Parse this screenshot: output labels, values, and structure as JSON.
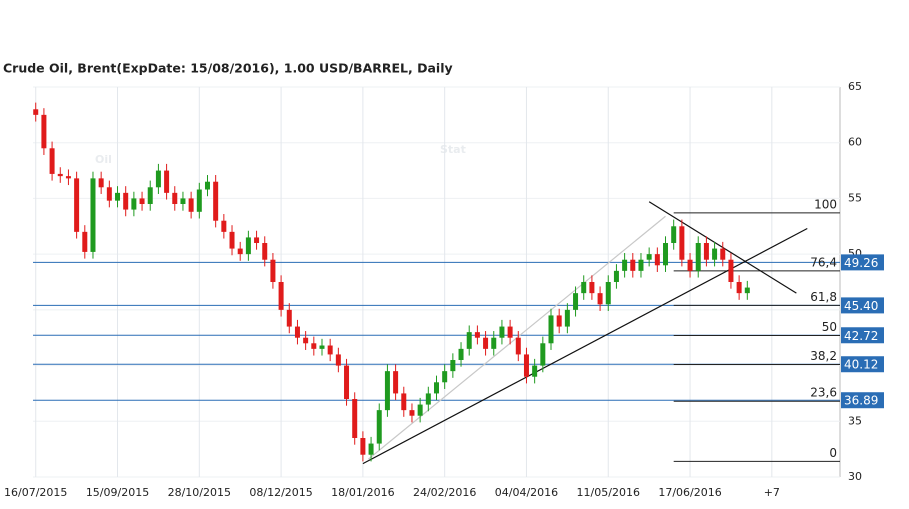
{
  "chart_data": {
    "type": "candlestick",
    "title": "Crude Oil, Brent(ExpDate: 15/08/2016), 1.00 USD/BARREL, Daily",
    "watermark": [
      "Oil",
      "Stat"
    ],
    "xlim": [
      -1,
      295
    ],
    "xticks": [
      {
        "value": 0,
        "label": "16/07/2015"
      },
      {
        "value": 30,
        "label": "15/09/2015"
      },
      {
        "value": 60,
        "label": "28/10/2015"
      },
      {
        "value": 90,
        "label": "08/12/2015"
      },
      {
        "value": 120,
        "label": "18/01/2016"
      },
      {
        "value": 150,
        "label": "24/02/2016"
      },
      {
        "value": 180,
        "label": "04/04/2016"
      },
      {
        "value": 210,
        "label": "11/05/2016"
      },
      {
        "value": 240,
        "label": "17/06/2016"
      },
      {
        "value": 270,
        "label": "+7"
      }
    ],
    "ylim": [
      30,
      65
    ],
    "yticks": [
      30,
      35,
      40,
      45,
      50,
      55,
      60,
      65
    ],
    "grid": true,
    "up_color": "#1f9a1f",
    "down_color": "#e01b1b",
    "x": [
      0,
      3,
      6,
      9,
      12,
      15,
      18,
      21,
      24,
      27,
      30,
      33,
      36,
      39,
      42,
      45,
      48,
      51,
      54,
      57,
      60,
      63,
      66,
      69,
      72,
      75,
      78,
      81,
      84,
      87,
      90,
      93,
      96,
      99,
      102,
      105,
      108,
      111,
      114,
      117,
      120,
      123,
      126,
      129,
      132,
      135,
      138,
      141,
      144,
      147,
      150,
      153,
      156,
      159,
      162,
      165,
      168,
      171,
      174,
      177,
      180,
      183,
      186,
      189,
      192,
      195,
      198,
      201,
      204,
      207,
      210,
      213,
      216,
      219,
      222,
      225,
      228,
      231,
      234,
      237,
      240,
      243,
      246,
      249,
      252,
      255,
      258,
      261
    ],
    "open": [
      63,
      62.5,
      59.5,
      57.2,
      57,
      56.8,
      52,
      50.2,
      56.8,
      56,
      54.8,
      55.5,
      54,
      55,
      54.5,
      56,
      57.5,
      55.5,
      54.5,
      55,
      53.8,
      55.8,
      56.5,
      53,
      52,
      50.5,
      50,
      51.5,
      51,
      49.5,
      47.5,
      45,
      43.5,
      42.5,
      42,
      41.5,
      41.8,
      41,
      40,
      37,
      33.5,
      32,
      33,
      36,
      39.5,
      37.5,
      36,
      35.5,
      36.5,
      37.5,
      38.5,
      39.5,
      40.5,
      41.5,
      43,
      42.5,
      41.5,
      42.5,
      43.5,
      42.5,
      41,
      39,
      40,
      42,
      44.5,
      43.5,
      45,
      46.5,
      47.5,
      46.5,
      45.5,
      47.5,
      48.5,
      49.5,
      48.5,
      49.5,
      50,
      49,
      51,
      52.5,
      49.5,
      48.5,
      51,
      49.5,
      50.5,
      49.5,
      47.5,
      46.5
    ],
    "high": [
      63.6,
      63.1,
      60.1,
      57.8,
      57.6,
      57.4,
      52.6,
      57.4,
      57.4,
      56.6,
      56.1,
      56.1,
      55.6,
      55.6,
      56.6,
      58.1,
      58.1,
      56.1,
      55.6,
      55.6,
      56.4,
      57.1,
      57.1,
      53.6,
      52.6,
      51.1,
      52.1,
      52.1,
      51.6,
      50.1,
      48.1,
      45.6,
      44.1,
      43.1,
      42.6,
      42.4,
      42.4,
      41.6,
      40.6,
      37.6,
      34.1,
      33.6,
      36.6,
      40.1,
      40.1,
      38.1,
      36.6,
      37.1,
      38.1,
      39.1,
      40.1,
      41.1,
      42.1,
      43.6,
      43.6,
      43.1,
      43.1,
      44.1,
      44.1,
      43.1,
      41.6,
      40.6,
      42.6,
      45.1,
      45.1,
      45.6,
      47.1,
      48.1,
      48.1,
      47.1,
      48.1,
      49.1,
      50.1,
      50.1,
      50.1,
      50.6,
      50.6,
      51.6,
      53.1,
      53.1,
      50.1,
      51.6,
      51.6,
      51.1,
      51.1,
      50.1,
      48.1,
      47.6
    ],
    "low": [
      61.9,
      58.9,
      56.6,
      56.4,
      56.2,
      51.4,
      49.6,
      49.6,
      55.4,
      54.2,
      54.2,
      53.4,
      53.4,
      53.9,
      53.9,
      55.4,
      54.9,
      53.9,
      53.9,
      53.2,
      53.2,
      55.2,
      52.4,
      51.4,
      49.9,
      49.4,
      49.4,
      50.4,
      48.9,
      46.9,
      44.4,
      42.9,
      41.9,
      41.4,
      40.9,
      40.9,
      40.4,
      39.4,
      36.4,
      32.9,
      31.4,
      31.4,
      32.4,
      35.4,
      36.9,
      35.4,
      34.9,
      34.9,
      35.9,
      36.9,
      37.9,
      38.9,
      39.9,
      40.9,
      41.9,
      40.9,
      40.9,
      41.9,
      41.9,
      40.4,
      38.4,
      38.4,
      39.4,
      41.4,
      42.9,
      42.9,
      44.4,
      45.9,
      45.9,
      44.9,
      44.9,
      46.9,
      47.9,
      47.9,
      47.9,
      48.9,
      48.4,
      48.4,
      50.4,
      48.9,
      47.9,
      47.9,
      48.9,
      48.9,
      48.9,
      46.9,
      45.9,
      45.9
    ],
    "close": [
      62.5,
      59.5,
      57.2,
      57,
      56.8,
      52,
      50.2,
      56.8,
      56,
      54.8,
      55.5,
      54,
      55,
      54.5,
      56,
      57.5,
      55.5,
      54.5,
      55,
      53.8,
      55.8,
      56.5,
      53,
      52,
      50.5,
      50,
      51.5,
      51,
      49.5,
      47.5,
      45,
      43.5,
      42.5,
      42,
      41.5,
      41.8,
      41,
      40,
      37,
      33.5,
      32,
      33,
      36,
      39.5,
      37.5,
      36,
      35.5,
      36.5,
      37.5,
      38.5,
      39.5,
      40.5,
      41.5,
      43,
      42.5,
      41.5,
      42.5,
      43.5,
      42.5,
      41,
      39,
      40,
      42,
      44.5,
      43.5,
      45,
      46.5,
      47.5,
      46.5,
      45.5,
      47.5,
      48.5,
      49.5,
      48.5,
      49.5,
      50,
      49,
      51,
      52.5,
      49.5,
      48.5,
      51,
      49.5,
      50.5,
      49.5,
      47.5,
      46.5,
      47
    ],
    "price_levels": [
      49.26,
      45.4,
      42.72,
      40.12,
      36.89
    ],
    "price_level_labels": [
      "49.26",
      "45.40",
      "42.72",
      "40.12",
      "36.89"
    ],
    "level_color": "#2a6db5",
    "fib_from": 234,
    "fib_levels": [
      {
        "label": "100",
        "price": 53.7
      },
      {
        "label": "76,4",
        "price": 48.5
      },
      {
        "label": "61,8",
        "price": 45.4
      },
      {
        "label": "50",
        "price": 42.7
      },
      {
        "label": "38,2",
        "price": 40.1
      },
      {
        "label": "23,6",
        "price": 36.8
      },
      {
        "label": "0",
        "price": 31.4
      }
    ],
    "trendlines": [
      {
        "x": [
          120,
          283
        ],
        "y": [
          31.2,
          52.3
        ],
        "color": "#111"
      },
      {
        "x": [
          225,
          279
        ],
        "y": [
          54.7,
          46.5
        ],
        "color": "#111"
      },
      {
        "x": [
          122,
          231
        ],
        "y": [
          31.6,
          53.4
        ],
        "color": "#c8c8c8"
      }
    ]
  }
}
